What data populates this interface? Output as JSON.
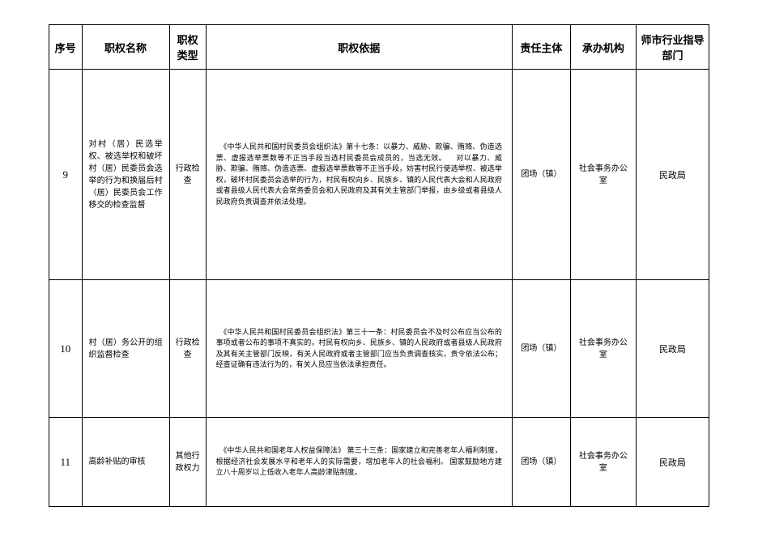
{
  "table": {
    "headers": {
      "seq": "序号",
      "name": "职权名称",
      "type": "职权类型",
      "basis": "职权依据",
      "body": "责任主体",
      "agency": "承办机构",
      "dept": "师市行业指导部门"
    },
    "rows": [
      {
        "seq": "9",
        "name": "对村（居）民选举权、被选举权和破坏村（居）民委员会选举的行为和换届后村（居）民委员会工作移交的检查监督",
        "type": "行政检查",
        "basis": "　《中华人民共和国村民委员会组织法》第十七条：以暴力、威胁、欺骗、贿赂、伪造选票、虚报选举票数等不正当手段当选村民委员会成员的，当选无效。\n　对以暴力、威胁、欺骗、贿赂、伪造选票、虚报选举票数等不正当手段，妨害村民行使选举权、被选举权，破坏村民委员会选举的行为，村民有权向乡、民族乡、镇的人民代表大会和人民政府或者县级人民代表大会常务委员会和人民政府及其有关主管部门举报，由乡级或者县级人民政府负责调查并依法处理。",
        "body": "团场（镇）",
        "agency": "社会事务办公室",
        "dept": "民政局"
      },
      {
        "seq": "10",
        "name": "村（居）务公开的组织监督检查",
        "type": "行政检查",
        "basis": "　《中华人民共和国村民委员会组织法》第三十一条：村民委员会不及时公布应当公布的事项或者公布的事项不真实的，村民有权向乡、民族乡、镇的人民政府或者县级人民政府及其有关主管部门反映，有关人民政府或者主管部门应当负责调查核实，责令依法公布；经查证确有违法行为的，有关人员应当依法承担责任。",
        "body": "团场（镇）",
        "agency": "社会事务办公室",
        "dept": "民政局"
      },
      {
        "seq": "11",
        "name": "高龄补贴的审核",
        "type": "其他行政权力",
        "basis": "　《中华人民共和国老年人权益保障法》 第三十三条：国家建立和完善老年人福利制度，根据经济社会发展水平和老年人的实际需要，增加老年人的社会福利。 国家鼓励地方建立八十周岁以上低收入老年人高龄津贴制度。",
        "body": "团场（镇）",
        "agency": "社会事务办公室",
        "dept": "民政局"
      }
    ],
    "style": {
      "border_color": "#000000",
      "background_color": "#ffffff",
      "text_color": "#000000",
      "header_fontsize": 13,
      "body_fontsize": 10,
      "basis_fontsize": 9
    }
  }
}
